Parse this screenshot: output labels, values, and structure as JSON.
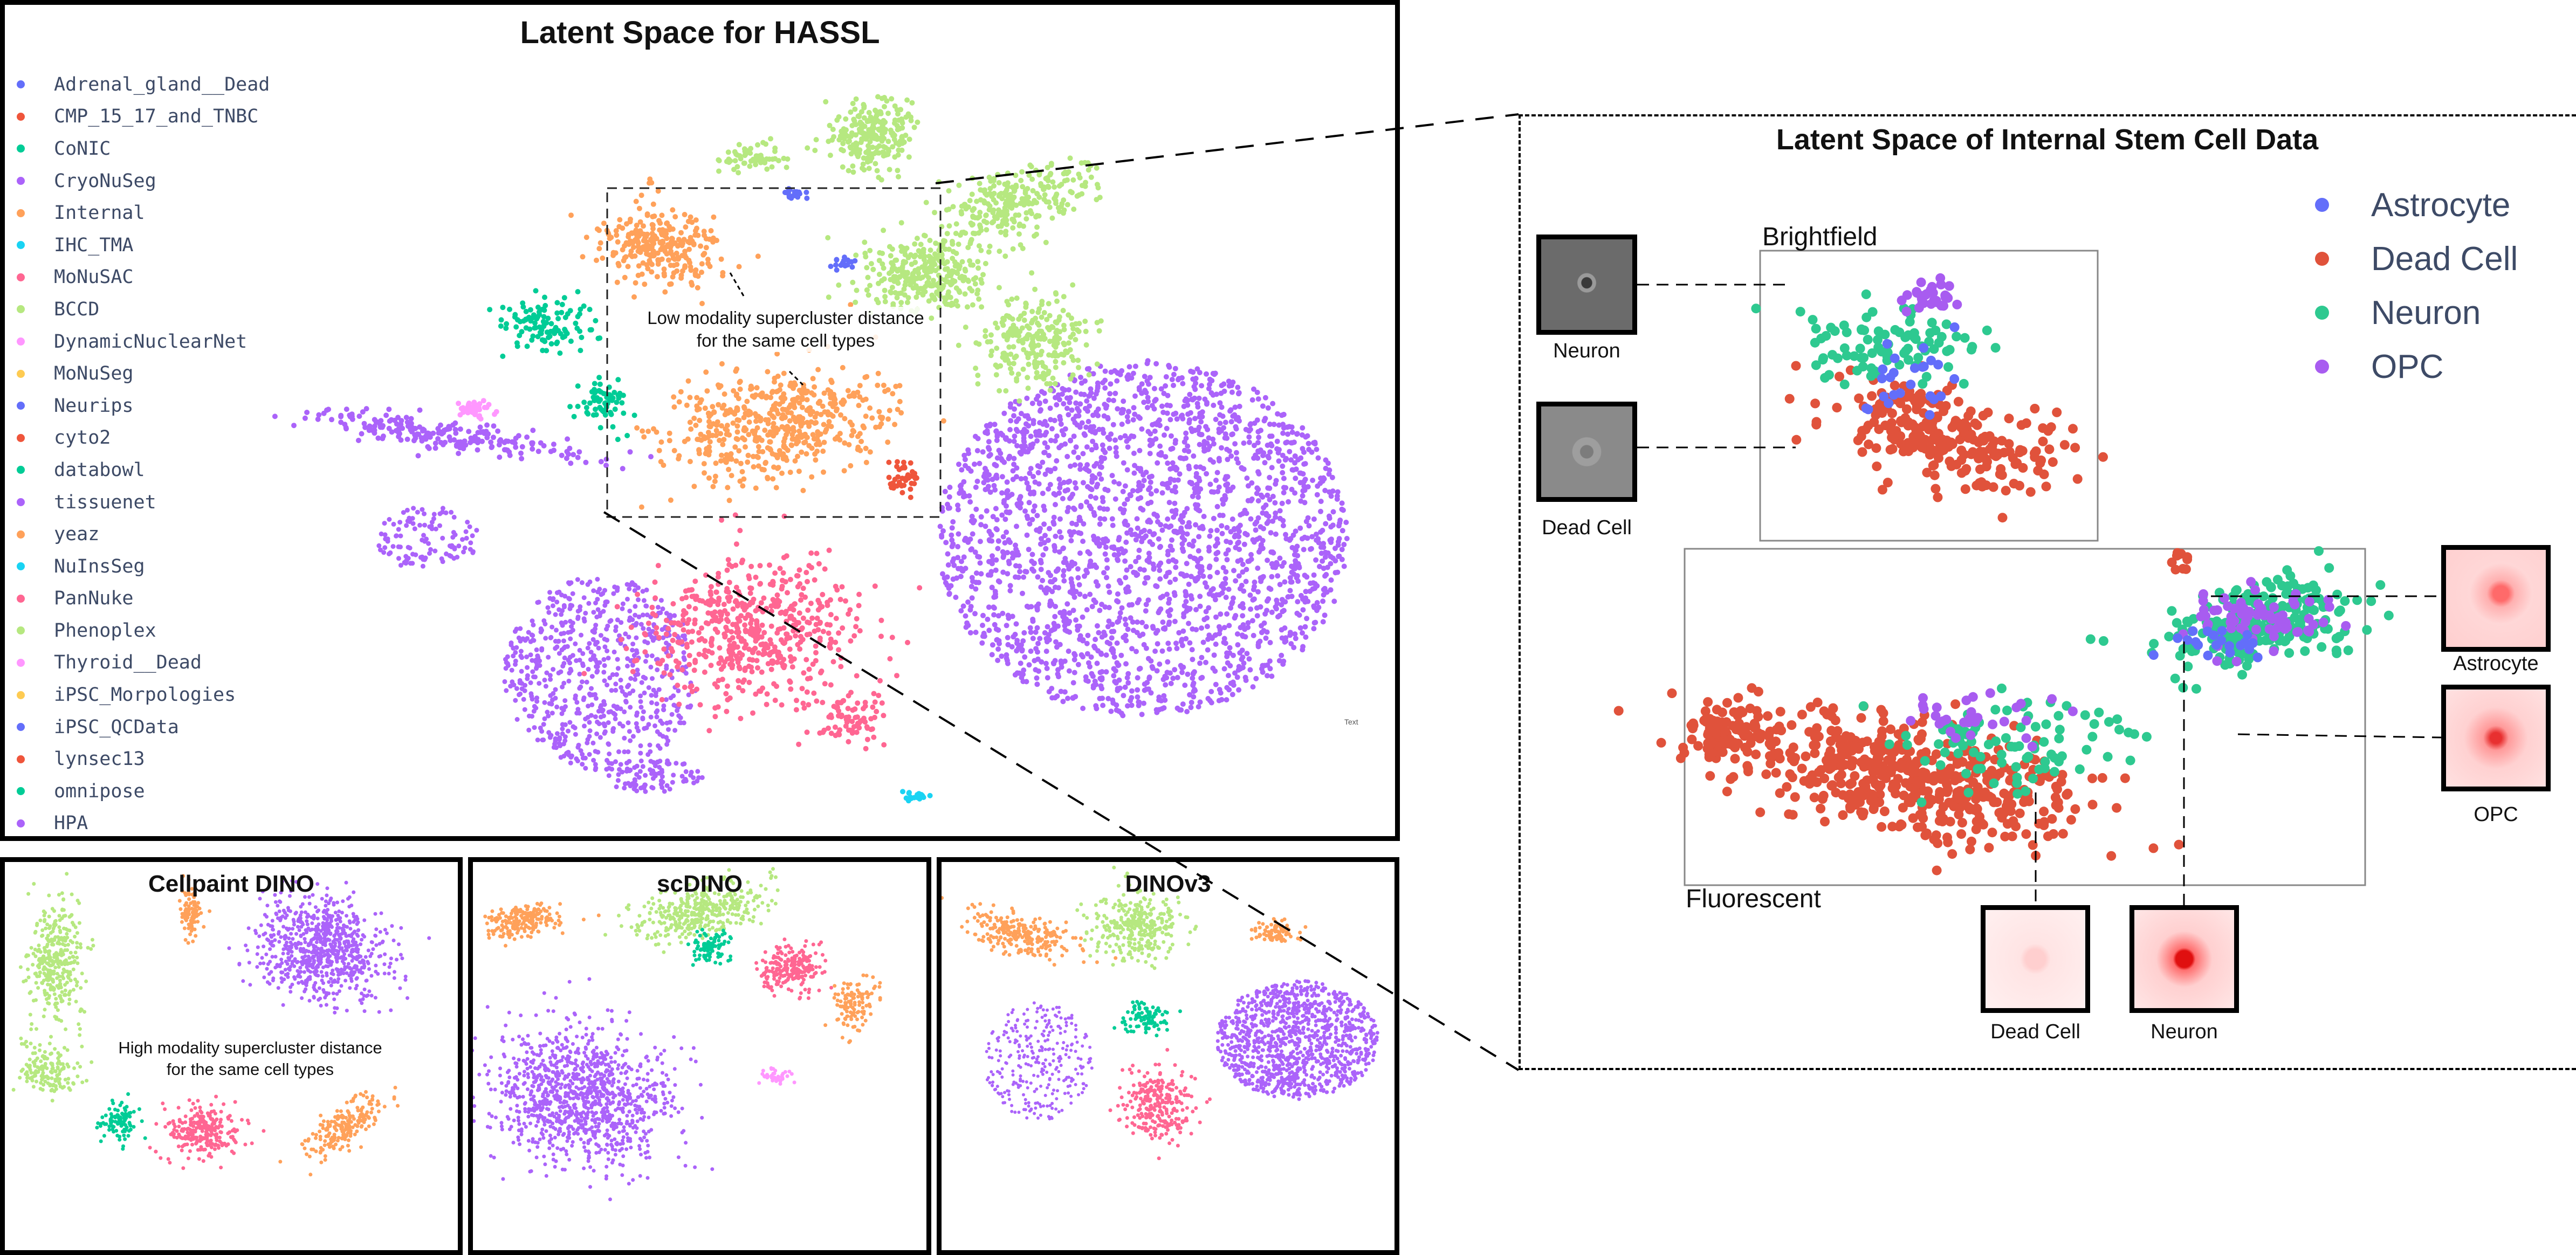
{
  "hassl": {
    "title": "Latent Space for HASSL",
    "annotation": [
      "Low modality supercluster distance",
      "for the same cell types"
    ],
    "corner_text": "Text",
    "legend": [
      {
        "label": "Adrenal_gland__Dead",
        "color": "#636efa"
      },
      {
        "label": "CMP_15_17_and_TNBC",
        "color": "#ef553b"
      },
      {
        "label": "CoNIC",
        "color": "#00cc96"
      },
      {
        "label": "CryoNuSeg",
        "color": "#ab63fa"
      },
      {
        "label": "Internal",
        "color": "#ffa15a"
      },
      {
        "label": "IHC_TMA",
        "color": "#19d3f3"
      },
      {
        "label": "MoNuSAC",
        "color": "#ff6692"
      },
      {
        "label": "BCCD",
        "color": "#b6e880"
      },
      {
        "label": "DynamicNuclearNet",
        "color": "#ff97ff"
      },
      {
        "label": "MoNuSeg",
        "color": "#fecb52"
      },
      {
        "label": "Neurips",
        "color": "#636efa"
      },
      {
        "label": "cyto2",
        "color": "#ef553b"
      },
      {
        "label": "databowl",
        "color": "#00cc96"
      },
      {
        "label": "tissuenet",
        "color": "#ab63fa"
      },
      {
        "label": "yeaz",
        "color": "#ffa15a"
      },
      {
        "label": "NuInsSeg",
        "color": "#19d3f3"
      },
      {
        "label": "PanNuke",
        "color": "#ff6692"
      },
      {
        "label": "Phenoplex",
        "color": "#b6e880"
      },
      {
        "label": "Thyroid__Dead",
        "color": "#ff97ff"
      },
      {
        "label": "iPSC_Morpologies",
        "color": "#fecb52"
      },
      {
        "label": "iPSC_QCData",
        "color": "#636efa"
      },
      {
        "label": "lynsec13",
        "color": "#ef553b"
      },
      {
        "label": "omnipose",
        "color": "#00cc96"
      },
      {
        "label": "HPA",
        "color": "#ab63fa"
      }
    ]
  },
  "cellpaint": {
    "title": "Cellpaint DINO",
    "annotation": [
      "High modality supercluster distance",
      "for the same cell types"
    ]
  },
  "scdino": {
    "title": "scDINO"
  },
  "dinov3": {
    "title": "DINOv3"
  },
  "stem": {
    "title": "Latent Space of Internal Stem Cell Data",
    "brightfield_label": "Brightfield",
    "fluorescent_label": "Fluorescent",
    "legend": [
      {
        "label": "Astrocyte",
        "color": "#636efa"
      },
      {
        "label": "Dead Cell",
        "color": "#e0523b"
      },
      {
        "label": "Neuron",
        "color": "#2ec990"
      },
      {
        "label": "OPC",
        "color": "#a85cf0"
      }
    ],
    "thumbs": {
      "bf_neuron": "Neuron",
      "bf_dead": "Dead Cell",
      "fl_dead": "Dead Cell",
      "fl_neuron": "Neuron",
      "fl_astro": "Astrocyte",
      "fl_opc": "OPC"
    }
  },
  "chart_data": [
    {
      "type": "scatter",
      "title": "Latent Space for HASSL",
      "series": [
        {
          "name": "tissuenet",
          "color": "#ab63fa",
          "points": 2200
        },
        {
          "name": "Phenoplex",
          "color": "#b6e880",
          "points": 900
        },
        {
          "name": "Internal",
          "color": "#ffa15a",
          "points": 700
        },
        {
          "name": "PanNuke",
          "color": "#ff6692",
          "points": 500
        },
        {
          "name": "databowl",
          "color": "#00cc96",
          "points": 100
        },
        {
          "name": "Neurips",
          "color": "#636efa",
          "points": 60
        }
      ]
    },
    {
      "type": "scatter",
      "title": "Cellpaint DINO"
    },
    {
      "type": "scatter",
      "title": "scDINO"
    },
    {
      "type": "scatter",
      "title": "DINOv3"
    },
    {
      "type": "scatter",
      "title": "Latent Space of Internal Stem Cell Data",
      "series": [
        {
          "name": "Astrocyte",
          "color": "#636efa"
        },
        {
          "name": "Dead Cell",
          "color": "#e0523b"
        },
        {
          "name": "Neuron",
          "color": "#2ec990"
        },
        {
          "name": "OPC",
          "color": "#a85cf0"
        }
      ]
    }
  ]
}
